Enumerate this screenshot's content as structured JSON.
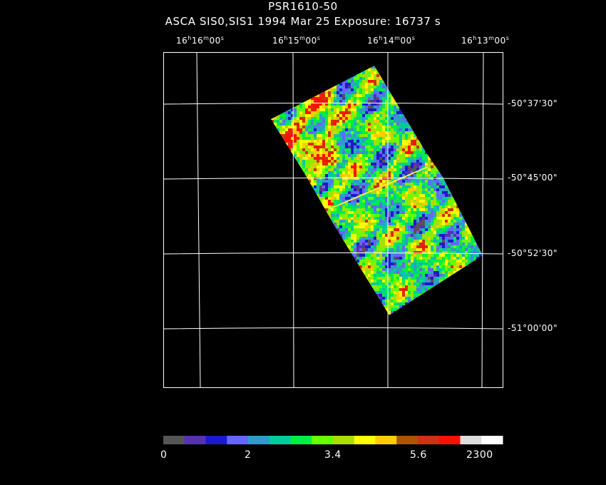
{
  "header": {
    "title": "PSR1610-50",
    "subtitle": "ASCA SIS0,SIS1    1994 Mar 25    Exposure: 16737 s"
  },
  "axes": {
    "ra_ticks": [
      {
        "h": "16",
        "m": "16",
        "s": "00"
      },
      {
        "h": "16",
        "m": "15",
        "s": "00"
      },
      {
        "h": "16",
        "m": "14",
        "s": "00"
      },
      {
        "h": "16",
        "m": "13",
        "s": "00"
      }
    ],
    "dec_ticks": [
      "-50°37'30\"",
      "-50°45'00\"",
      "-50°52'30\"",
      "-51°00'00\""
    ]
  },
  "colorbar": {
    "labels": [
      "0",
      "2",
      "3.4",
      "5.6",
      "2300"
    ],
    "colors": [
      "#555555",
      "#5533aa",
      "#1a1acc",
      "#6666ff",
      "#3399cc",
      "#00cc99",
      "#00ee44",
      "#66ff00",
      "#aadd00",
      "#ffff00",
      "#ffcc00",
      "#aa5500",
      "#cc3311",
      "#ff1100",
      "#dddddd",
      "#ffffff"
    ]
  },
  "colors": {
    "background": "#000000",
    "grid": "#ffffff"
  }
}
